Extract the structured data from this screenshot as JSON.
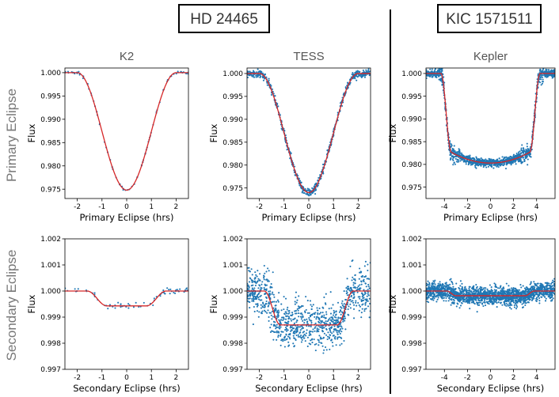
{
  "group_labels": {
    "left": "HD 24465",
    "right": "KIC 1571511"
  },
  "row_labels": {
    "primary": "Primary  Eclipse",
    "secondary": "Secondary  Eclipse"
  },
  "colors": {
    "points": "#1f77b4",
    "model": "#d62728",
    "row_label": "#777777",
    "title": "#555555"
  },
  "chart_data": [
    {
      "id": "k2-primary",
      "type": "scatter",
      "title": "K2",
      "xlabel": "Primary Eclipse (hrs)",
      "ylabel": "Flux",
      "xlim": [
        -2.5,
        2.5
      ],
      "ylim": [
        0.973,
        1.001
      ],
      "xticks": [
        "-2",
        "-1",
        "0",
        "1",
        "2"
      ],
      "xtick_values": [
        -2,
        -1,
        0,
        1,
        2
      ],
      "yticks": [
        "0.975",
        "0.980",
        "0.985",
        "0.990",
        "0.995",
        "1.000"
      ],
      "ytick_values": [
        0.975,
        0.98,
        0.985,
        0.99,
        0.995,
        1.0
      ],
      "model": {
        "shape": "v",
        "depth": 0.0252,
        "t1": 2.0,
        "t2": 0.0
      },
      "points": {
        "count": 90,
        "noise": 0.00015
      }
    },
    {
      "id": "tess-primary",
      "type": "scatter",
      "title": "TESS",
      "xlabel": "Primary Eclipse (hrs)",
      "ylabel": "Flux",
      "xlim": [
        -2.5,
        2.5
      ],
      "ylim": [
        0.9727,
        1.0012
      ],
      "xticks": [
        "-2",
        "-1",
        "0",
        "1",
        "2"
      ],
      "xtick_values": [
        -2,
        -1,
        0,
        1,
        2
      ],
      "yticks": [
        "0.975",
        "0.980",
        "0.985",
        "0.990",
        "0.995",
        "1.000"
      ],
      "ytick_values": [
        0.975,
        0.98,
        0.985,
        0.99,
        0.995,
        1.0
      ],
      "model": {
        "shape": "v",
        "depth": 0.026,
        "t1": 2.0,
        "t2": 0.0
      },
      "points": {
        "count": 650,
        "noise": 0.00045
      }
    },
    {
      "id": "kepler-primary",
      "type": "scatter",
      "title": "Kepler",
      "xlabel": "Primary Eclipse (hrs)",
      "ylabel": "Flux",
      "xlim": [
        -5.6,
        5.6
      ],
      "ylim": [
        0.9725,
        1.0012
      ],
      "xticks": [
        "-4",
        "-2",
        "0",
        "2",
        "4"
      ],
      "xtick_values": [
        -4,
        -2,
        0,
        2,
        4
      ],
      "yticks": [
        "0.975",
        "0.980",
        "0.985",
        "0.990",
        "0.995",
        "1.000"
      ],
      "ytick_values": [
        0.975,
        0.98,
        0.985,
        0.99,
        0.995,
        1.0
      ],
      "model": {
        "shape": "u",
        "depth": 0.0197,
        "t1": 4.3,
        "t2": 3.4
      },
      "points": {
        "count": 1400,
        "noise": 0.0004
      }
    },
    {
      "id": "k2-secondary",
      "type": "scatter",
      "title": "",
      "xlabel": "Secondary Eclipse (hrs)",
      "ylabel": "Flux",
      "xlim": [
        -2.5,
        2.5
      ],
      "ylim": [
        0.997,
        1.002
      ],
      "xticks": [
        "-2",
        "-1",
        "0",
        "1",
        "2"
      ],
      "xtick_values": [
        -2,
        -1,
        0,
        1,
        2
      ],
      "yticks": [
        "0.997",
        "0.998",
        "0.999",
        "1.000",
        "1.001",
        "1.002"
      ],
      "ytick_values": [
        0.997,
        0.998,
        0.999,
        1.0,
        1.001,
        1.002
      ],
      "model": {
        "shape": "flat",
        "depth": 0.00057,
        "t1": 1.6,
        "t2": 0.8
      },
      "points": {
        "count": 70,
        "noise": 6e-05
      }
    },
    {
      "id": "tess-secondary",
      "type": "scatter",
      "title": "",
      "xlabel": "Secondary Eclipse (hrs)",
      "ylabel": "Flux",
      "xlim": [
        -2.5,
        2.5
      ],
      "ylim": [
        0.997,
        1.002
      ],
      "xticks": [
        "-2",
        "-1",
        "0",
        "1",
        "2"
      ],
      "xtick_values": [
        -2,
        -1,
        0,
        1,
        2
      ],
      "yticks": [
        "0.997",
        "0.998",
        "0.999",
        "1.000",
        "1.001",
        "1.002"
      ],
      "ytick_values": [
        0.997,
        0.998,
        0.999,
        1.0,
        1.001,
        1.002
      ],
      "model": {
        "shape": "flat",
        "depth": 0.0013,
        "t1": 1.8,
        "t2": 1.15
      },
      "points": {
        "count": 1000,
        "noise": 0.00045
      }
    },
    {
      "id": "kepler-secondary",
      "type": "scatter",
      "title": "",
      "xlabel": "Secondary Eclipse (hrs)",
      "ylabel": "Flux",
      "xlim": [
        -5.6,
        5.6
      ],
      "ylim": [
        0.997,
        1.002
      ],
      "xticks": [
        "-4",
        "-2",
        "0",
        "2",
        "4"
      ],
      "xtick_values": [
        -4,
        -2,
        0,
        2,
        4
      ],
      "yticks": [
        "0.997",
        "0.998",
        "0.999",
        "1.000",
        "1.001",
        "1.002"
      ],
      "ytick_values": [
        0.997,
        0.998,
        0.999,
        1.0,
        1.001,
        1.002
      ],
      "model": {
        "shape": "flat",
        "depth": 0.00018,
        "t1": 3.8,
        "t2": 3.0
      },
      "points": {
        "count": 1800,
        "noise": 0.00017
      }
    }
  ]
}
